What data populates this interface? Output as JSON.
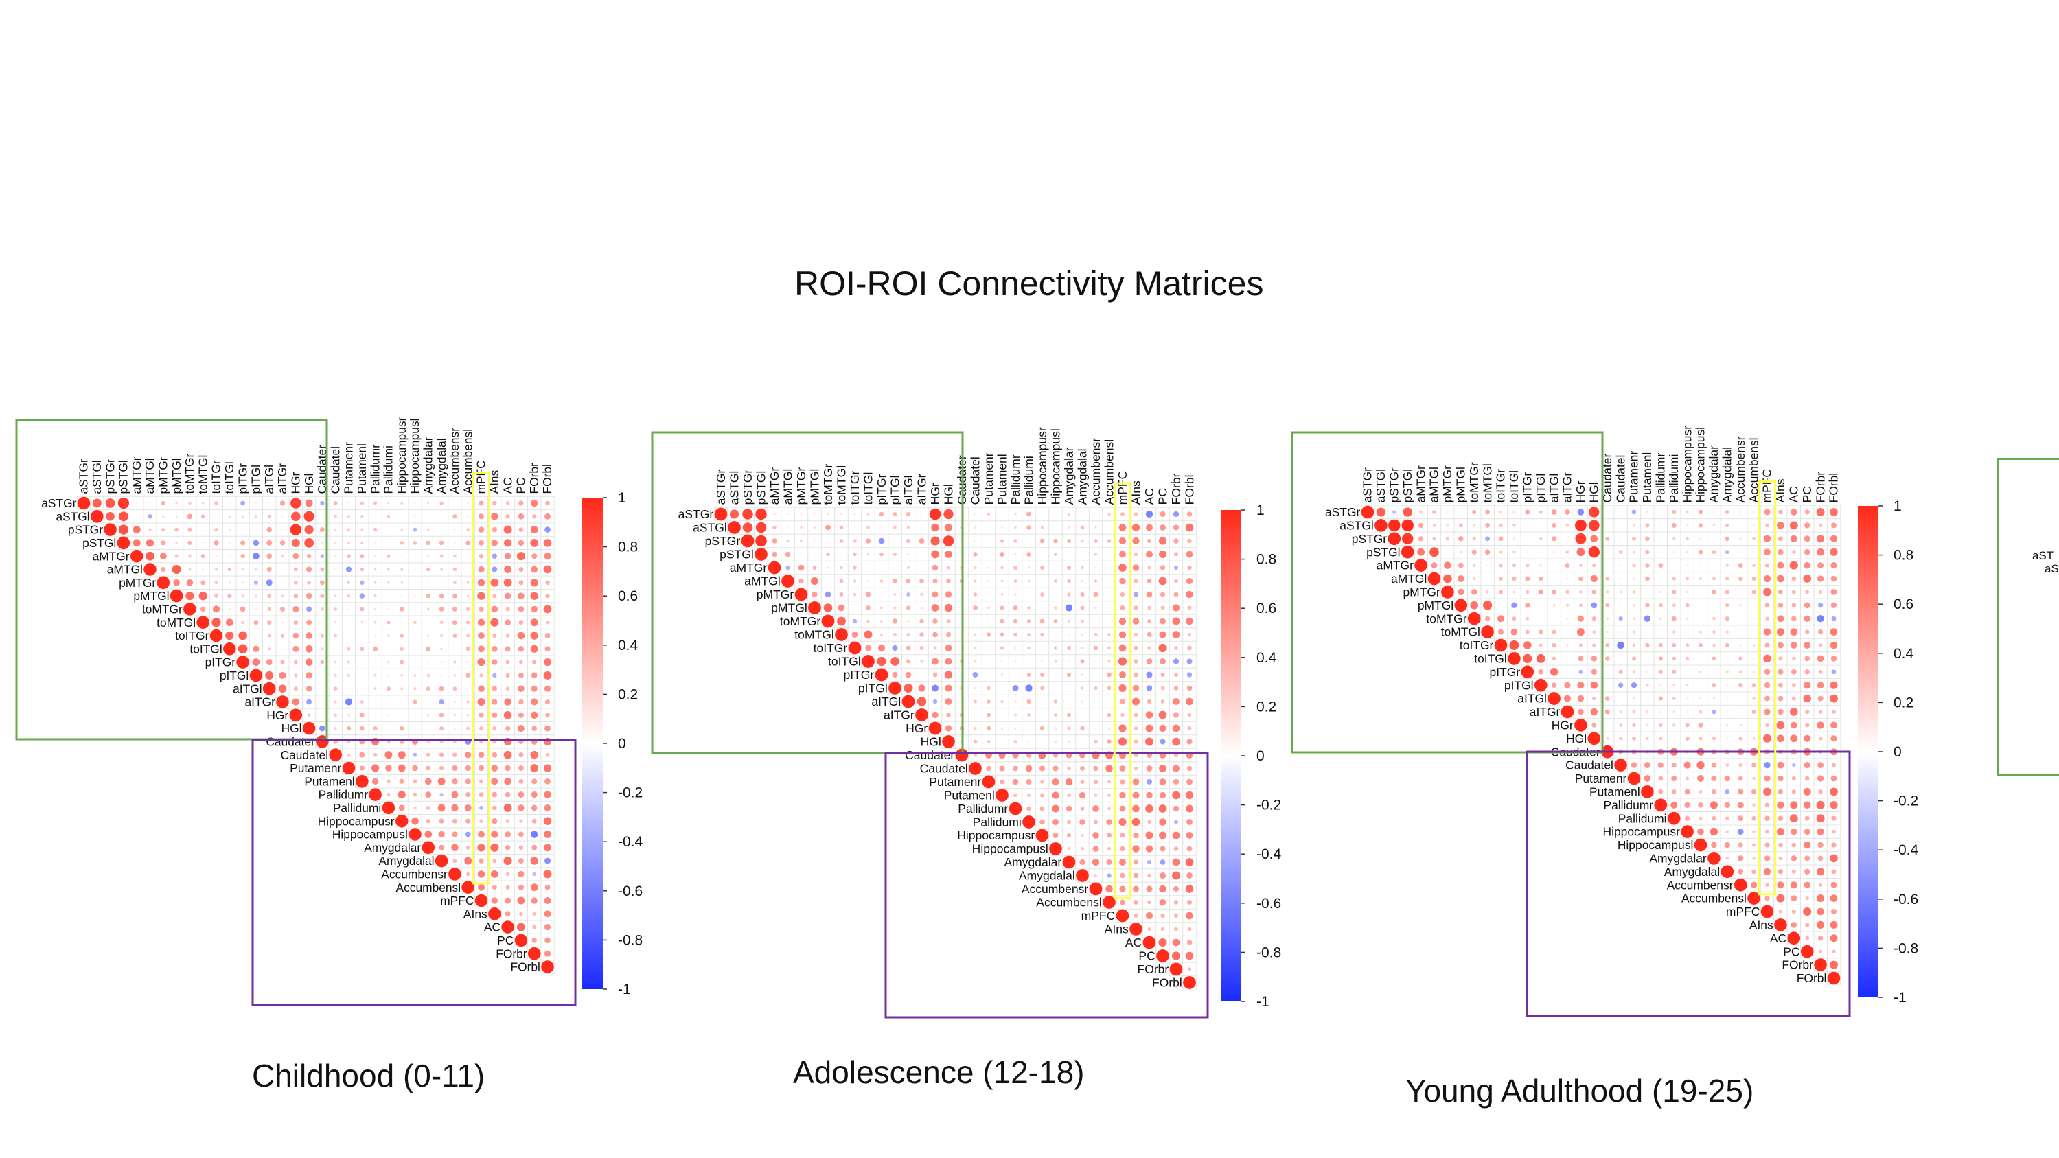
{
  "title": "ROI-ROI Connectivity Matrices",
  "roi_labels": [
    "aSTGr",
    "aSTGl",
    "pSTGr",
    "pSTGl",
    "aMTGr",
    "aMTGl",
    "pMTGr",
    "pMTGl",
    "toMTGr",
    "toMTGl",
    "toITGr",
    "toITGl",
    "pITGr",
    "pITGl",
    "aITGl",
    "aITGr",
    "HGr",
    "HGl",
    "Caudater",
    "Caudatel",
    "Putamenr",
    "Putamenl",
    "Pallidumr",
    "Pallidumi",
    "Hippocampusr",
    "Hippocampusl",
    "Amygdalar",
    "Amygdalal",
    "Accumbensr",
    "Accumbensl",
    "mPFC",
    "AIns",
    "AC",
    "PC",
    "FOrbr",
    "FOrbl"
  ],
  "colorbar": {
    "ticks": [
      "1",
      "0.8",
      "0.6",
      "0.4",
      "0.2",
      "0",
      "-0.2",
      "-0.4",
      "-0.6",
      "-0.8",
      "-1"
    ],
    "colors": {
      "positive": "#ff2a1a",
      "zero": "#ffffff",
      "negative": "#1a2aff"
    }
  },
  "highlight_colors": {
    "temporal_box": "#6aa84f",
    "subcortical_box": "#7030a0",
    "mpfc_box": "#ffff4d"
  },
  "panels": [
    {
      "label": "Childhood (0-11)"
    },
    {
      "label": "Adolescence (12-18)"
    },
    {
      "label": "Young Adulthood (19-25)"
    }
  ],
  "partial_panel_labels": [
    "aST",
    "aS"
  ],
  "chart_data": {
    "type": "heatmap",
    "title": "ROI-ROI Connectivity Matrices",
    "variant": "upper-triangular correlation matrix, circle size and color encode correlation",
    "value_range": [
      -1,
      1
    ],
    "matrices": [
      {
        "name": "Childhood (0-11)"
      },
      {
        "name": "Adolescence (12-18)"
      },
      {
        "name": "Young Adulthood (19-25)"
      }
    ]
  }
}
